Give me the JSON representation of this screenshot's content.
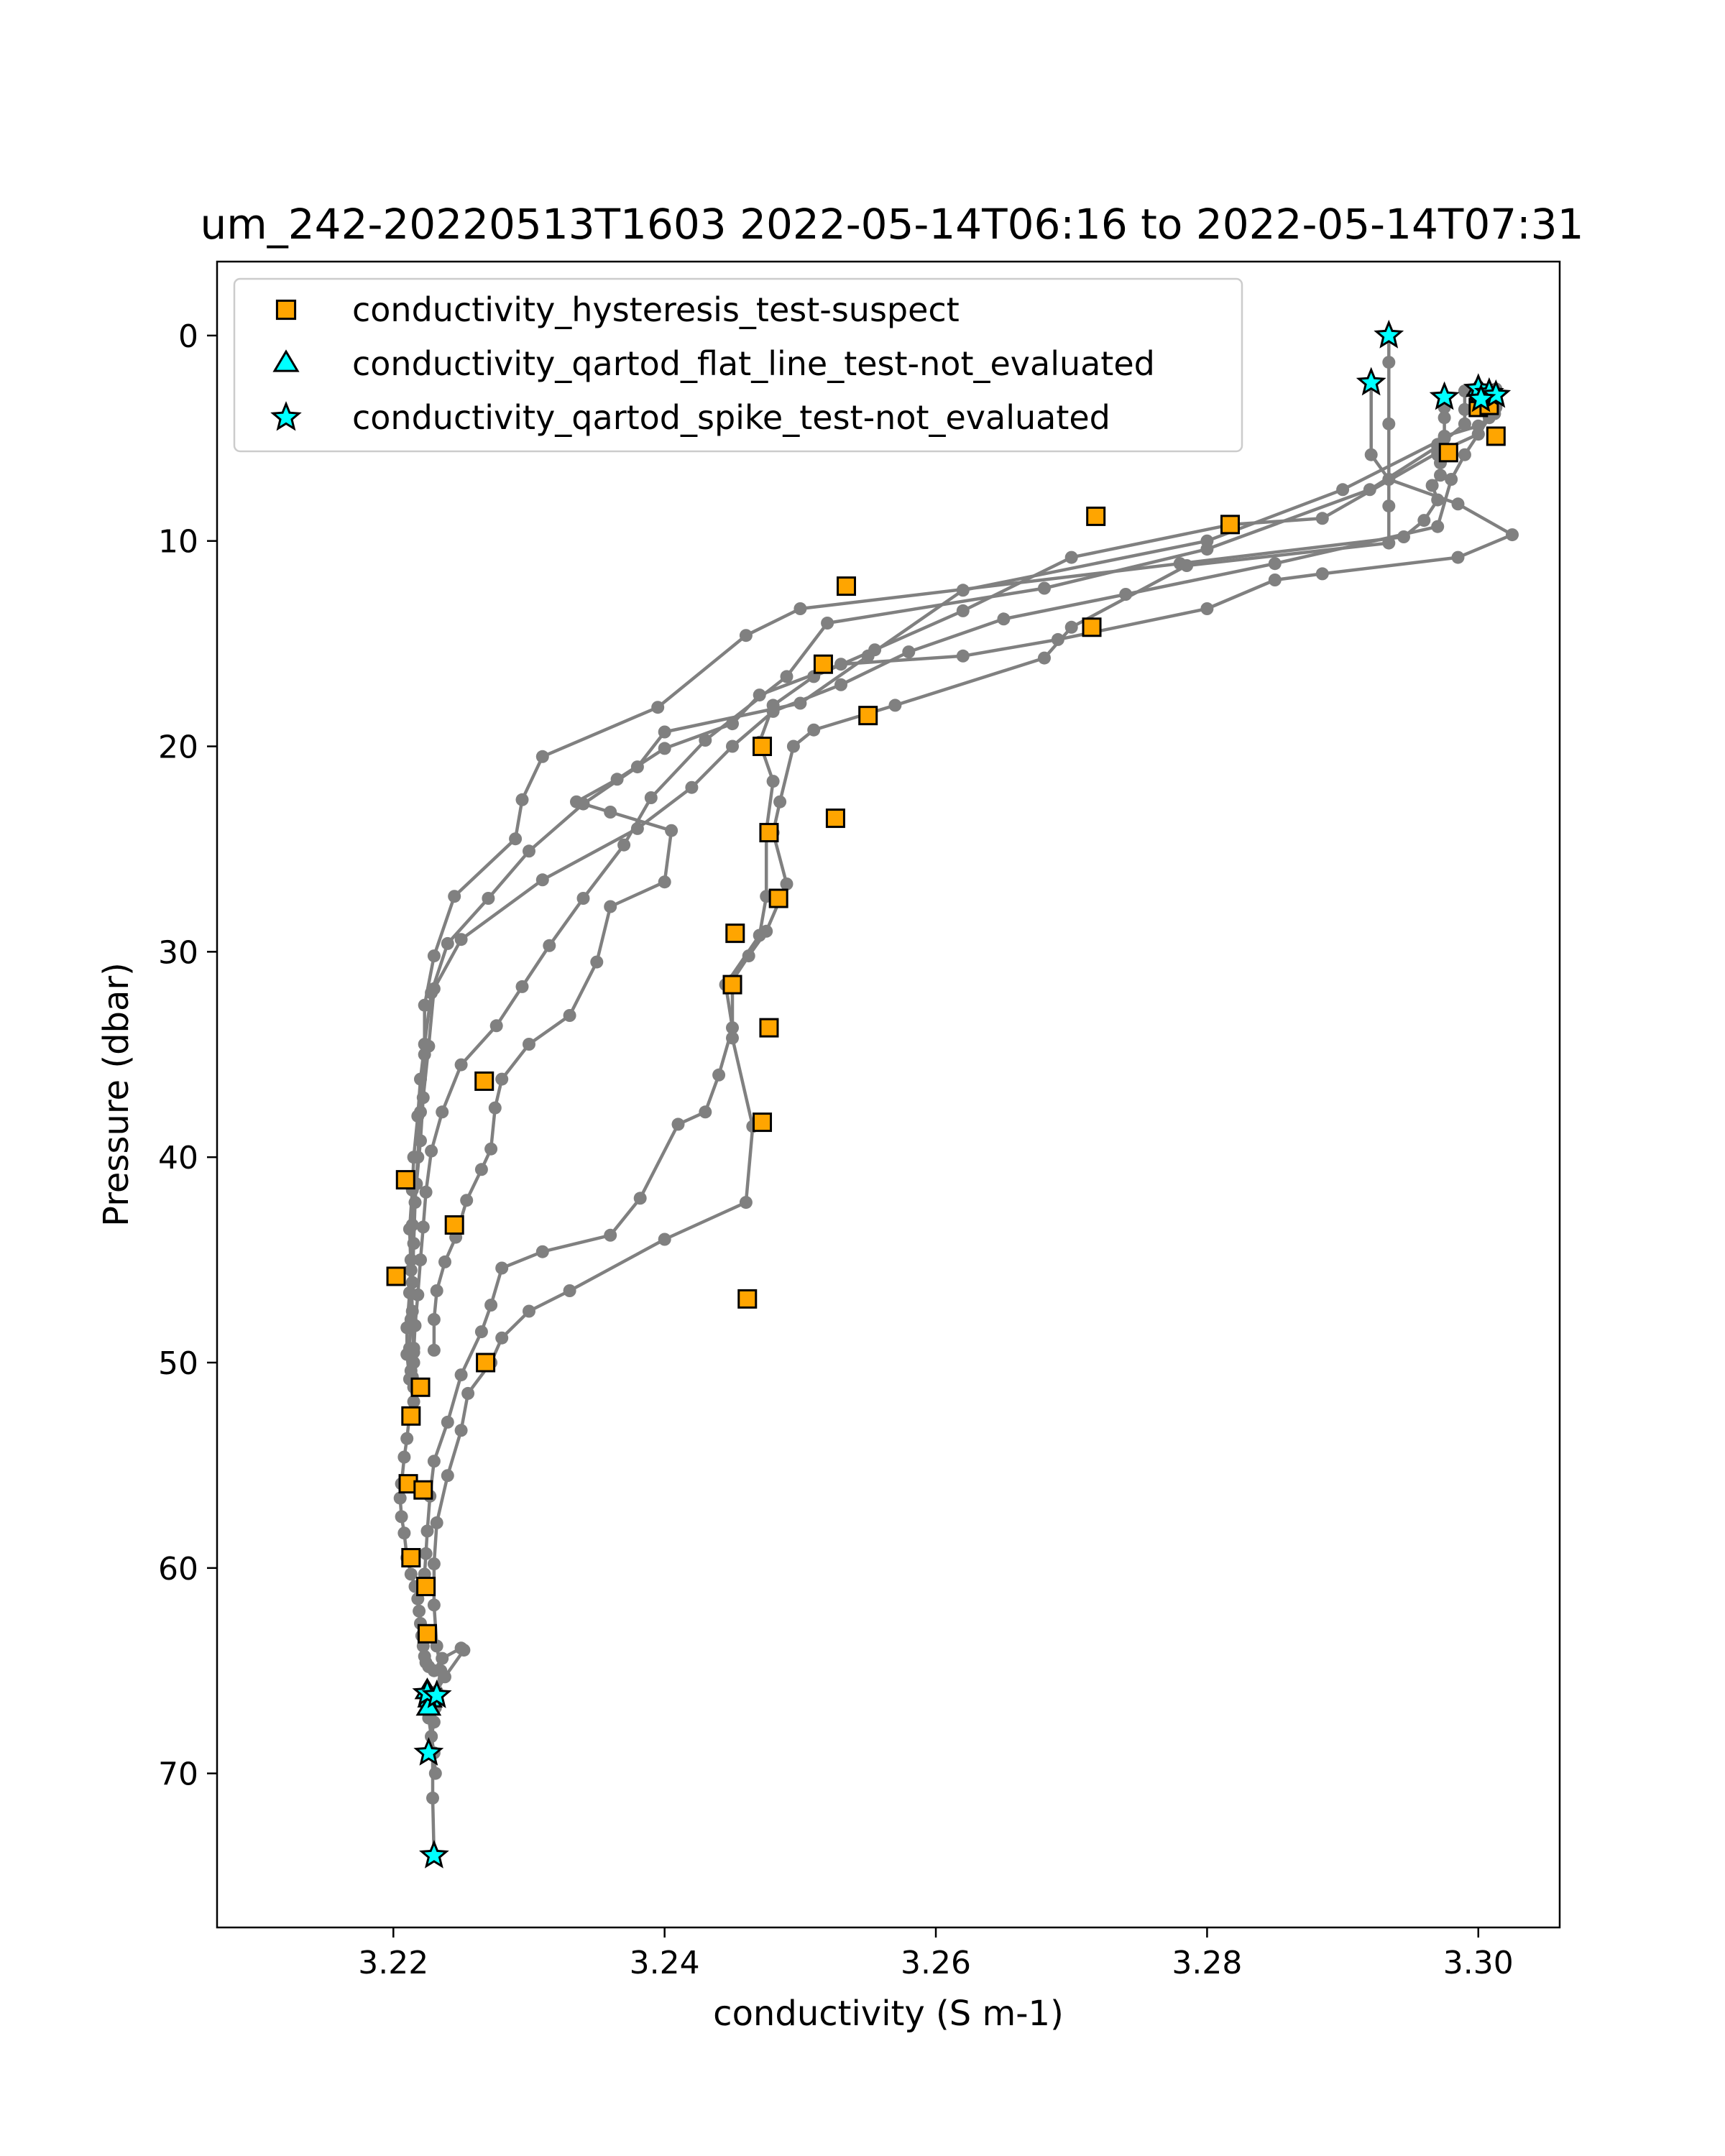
{
  "chart_data": {
    "type": "scatter",
    "title": "um_242-20220513T1603 2022-05-14T06:16 to 2022-05-14T07:31",
    "xlabel": "conductivity (S m-1)",
    "ylabel": "Pressure (dbar)",
    "xlim": [
      3.207,
      3.306
    ],
    "ylim": [
      77.5,
      -3.6
    ],
    "y_inverted": true,
    "grid": false,
    "legend_placement": "upper-left",
    "xticks": [
      3.22,
      3.24,
      3.26,
      3.28,
      3.3
    ],
    "xtick_labels": [
      "3.22",
      "3.24",
      "3.26",
      "3.28",
      "3.30"
    ],
    "yticks": [
      0,
      10,
      20,
      30,
      40,
      50,
      60,
      70
    ],
    "ytick_labels": [
      "0",
      "10",
      "20",
      "30",
      "40",
      "50",
      "60",
      "70"
    ],
    "profile_color": "#808080",
    "profiles": [
      {
        "x": [
          3.2934,
          3.2934,
          3.2934,
          3.2934,
          3.2934,
          3.2785,
          3.27,
          3.268,
          3.257,
          3.251,
          3.2495,
          3.2485,
          3.248,
          3.249,
          3.2475,
          3.2462,
          3.245,
          3.245,
          3.2465,
          3.246,
          3.24,
          3.233,
          3.23,
          3.228,
          3.2272,
          3.2255,
          3.225,
          3.224,
          3.2232,
          3.223,
          3.223,
          3.2232,
          3.2235,
          3.2232,
          3.2231,
          3.223,
          3.2228,
          3.2229,
          3.2229,
          3.223
        ],
        "y": [
          0.0,
          1.3,
          4.3,
          8.3,
          10.1,
          11.2,
          14.2,
          15.7,
          18.0,
          19.2,
          20.0,
          22.7,
          24.2,
          26.7,
          29.0,
          30.2,
          31.4,
          34.2,
          38.5,
          42.2,
          44.0,
          46.5,
          47.5,
          48.8,
          50.0,
          51.5,
          53.3,
          55.5,
          57.8,
          59.8,
          61.8,
          63.8,
          65.0,
          66.0,
          66.8,
          67.5,
          68.2,
          69.0,
          71.2,
          74.0
        ]
      },
      {
        "x": [
          3.3008,
          3.3008,
          3.3008,
          3.3,
          3.297,
          3.2885,
          3.2818,
          3.27,
          3.262,
          3.2555,
          3.251,
          3.248,
          3.247,
          3.248,
          3.2475,
          3.2475,
          3.247,
          3.2445,
          3.245,
          3.244,
          3.243,
          3.241,
          3.2382,
          3.236,
          3.231,
          3.228,
          3.2272,
          3.2265,
          3.225,
          3.224,
          3.223,
          3.2227,
          3.2225,
          3.2224,
          3.2223
        ],
        "y": [
          2.8,
          3.4,
          4.0,
          4.8,
          5.7,
          8.9,
          9.2,
          10.8,
          13.4,
          15.3,
          16.6,
          18.0,
          19.8,
          21.7,
          24.1,
          27.3,
          29.2,
          31.6,
          33.7,
          36.0,
          37.8,
          38.4,
          42.0,
          43.8,
          44.6,
          45.4,
          47.2,
          48.5,
          50.6,
          52.9,
          54.8,
          56.5,
          58.2,
          59.3,
          60.3
        ]
      },
      {
        "x": [
          3.2921,
          3.2921,
          3.2934,
          3.2985,
          3.3025,
          3.2985,
          3.2885,
          3.285,
          3.28,
          3.269,
          3.262,
          3.253,
          3.247,
          3.245,
          3.24,
          3.2365,
          3.2335,
          3.236,
          3.2405,
          3.24,
          3.236,
          3.235,
          3.233,
          3.23,
          3.228,
          3.2275,
          3.2272,
          3.2265,
          3.2254,
          3.2246,
          3.2238,
          3.2232,
          3.223,
          3.223
        ],
        "y": [
          2.3,
          5.8,
          7.0,
          8.2,
          9.7,
          10.8,
          11.6,
          11.9,
          13.3,
          14.8,
          15.6,
          16.0,
          17.5,
          18.9,
          20.1,
          21.6,
          22.7,
          23.2,
          24.1,
          26.6,
          27.8,
          30.5,
          33.1,
          34.5,
          36.2,
          37.6,
          39.6,
          40.6,
          42.1,
          43.9,
          45.1,
          46.5,
          47.9,
          49.4
        ]
      },
      {
        "x": [
          3.3012,
          3.3012,
          3.3,
          3.2975,
          3.297,
          3.297,
          3.2972,
          3.2972,
          3.2966,
          3.297,
          3.296,
          3.2945,
          3.278,
          3.25,
          3.246,
          3.2395,
          3.231,
          3.2295,
          3.229,
          3.2245,
          3.223,
          3.2223,
          3.2223,
          3.222,
          3.2218,
          3.2216,
          3.2215,
          3.2214,
          3.2213,
          3.2212,
          3.2213
        ],
        "y": [
          2.9,
          3.8,
          4.4,
          4.9,
          5.3,
          5.8,
          6.2,
          6.8,
          7.3,
          8.0,
          9.0,
          9.8,
          11.1,
          13.3,
          14.6,
          18.1,
          20.5,
          22.6,
          24.5,
          27.3,
          30.2,
          32.6,
          35.0,
          37.8,
          40.0,
          42.2,
          44.2,
          46.1,
          47.9,
          49.3,
          50.4
        ]
      },
      {
        "x": [
          3.2975,
          3.2975,
          3.2975,
          3.2975,
          3.29,
          3.28,
          3.262,
          3.255,
          3.25,
          3.24,
          3.238,
          3.234,
          3.23,
          3.227,
          3.224,
          3.2228,
          3.2223,
          3.222,
          3.2218,
          3.2215,
          3.2214,
          3.2212,
          3.2213,
          3.2214,
          3.2215
        ],
        "y": [
          3.0,
          3.5,
          4.0,
          5.0,
          7.5,
          10.0,
          12.4,
          15.6,
          17.9,
          19.3,
          21.0,
          22.8,
          25.1,
          27.4,
          29.6,
          32.0,
          34.5,
          36.2,
          38.0,
          40.0,
          41.6,
          43.5,
          45.5,
          47.5,
          49.3
        ]
      },
      {
        "x": [
          3.3013,
          3.3013,
          3.3,
          3.299,
          3.298,
          3.297,
          3.285,
          3.274,
          3.265,
          3.258,
          3.253,
          3.248,
          3.245,
          3.242,
          3.238,
          3.231,
          3.225,
          3.223,
          3.2226,
          3.2222,
          3.222,
          3.2217,
          3.2214,
          3.2213,
          3.2212,
          3.221,
          3.221,
          3.2212,
          3.2215
        ],
        "y": [
          2.6,
          3.5,
          4.8,
          5.8,
          7.0,
          9.3,
          11.1,
          12.6,
          13.8,
          15.4,
          17.0,
          18.3,
          20.0,
          22.0,
          24.0,
          26.5,
          29.4,
          31.8,
          34.6,
          37.1,
          39.2,
          41.3,
          43.3,
          45.0,
          46.6,
          48.3,
          49.6,
          50.8,
          51.9
        ]
      },
      {
        "x": [
          3.299,
          3.299,
          3.299,
          3.297,
          3.292,
          3.28,
          3.268,
          3.252,
          3.249,
          3.243,
          3.239,
          3.237,
          3.234,
          3.2315,
          3.2295,
          3.2276,
          3.225,
          3.2236,
          3.2228,
          3.2224,
          3.2222,
          3.222,
          3.2218,
          3.2216,
          3.2215,
          3.2214
        ],
        "y": [
          2.7,
          3.6,
          4.3,
          5.4,
          7.5,
          10.4,
          12.3,
          14.0,
          16.6,
          19.7,
          22.5,
          24.8,
          27.4,
          29.7,
          31.7,
          33.6,
          35.5,
          37.8,
          39.7,
          41.7,
          43.4,
          45.0,
          46.7,
          48.2,
          49.5,
          50.7
        ]
      },
      {
        "x": [
          3.2215,
          3.2215,
          3.2212,
          3.221,
          3.2208,
          3.2206,
          3.2205,
          3.2206,
          3.2208,
          3.221,
          3.2213,
          3.2216,
          3.2218,
          3.2219,
          3.222,
          3.2221,
          3.2222,
          3.2223,
          3.2224,
          3.2226,
          3.223,
          3.2236,
          3.225,
          3.2252,
          3.2238,
          3.223,
          3.2228,
          3.2226,
          3.2228,
          3.223,
          3.2231
        ],
        "y": [
          50.0,
          51.2,
          52.5,
          53.7,
          54.6,
          55.9,
          56.6,
          57.5,
          58.3,
          59.5,
          60.3,
          60.9,
          61.5,
          62.1,
          62.7,
          63.3,
          63.8,
          64.3,
          64.6,
          64.8,
          65.0,
          64.4,
          63.9,
          64.0,
          65.3,
          66.2,
          66.7,
          67.3,
          68.2,
          69.0,
          70.0
        ]
      }
    ],
    "series": [
      {
        "name": "conductivity_hysteresis_test-suspect",
        "marker": "square",
        "color": "#FFA500",
        "edgecolor": "#000000",
        "x": [
          3.2718,
          3.2817,
          3.2534,
          3.2715,
          3.2517,
          3.2472,
          3.255,
          3.2477,
          3.2526,
          3.2484,
          3.2452,
          3.245,
          3.2477,
          3.2472,
          3.2267,
          3.2209,
          3.2245,
          3.2202,
          3.2461,
          3.2268,
          3.222,
          3.2213,
          3.2211,
          3.2222,
          3.2213,
          3.2224,
          3.2225,
          3.3,
          3.3008,
          3.3013,
          3.2978
        ],
        "y": [
          8.8,
          9.2,
          12.2,
          14.2,
          16.0,
          20.0,
          18.5,
          24.2,
          23.5,
          27.4,
          29.1,
          31.6,
          33.7,
          38.3,
          36.3,
          41.1,
          43.3,
          45.8,
          46.9,
          50.0,
          51.2,
          52.6,
          55.9,
          56.2,
          59.5,
          60.9,
          63.2,
          3.5,
          3.4,
          4.9,
          5.7
        ]
      },
      {
        "name": "conductivity_qartod_flat_line_test-not_evaluated",
        "marker": "triangle",
        "color": "#00FFFF",
        "edgecolor": "#000000",
        "x": [
          3.3,
          3.3003,
          3.2225,
          3.2227,
          3.2226
        ],
        "y": [
          2.6,
          2.9,
          66.0,
          66.4,
          66.8
        ]
      },
      {
        "name": "conductivity_qartod_spike_test-not_evaluated",
        "marker": "star",
        "color": "#00FFFF",
        "edgecolor": "#000000",
        "x": [
          3.2934,
          3.2921,
          3.2975,
          3.3,
          3.3008,
          3.3013,
          3.3002,
          3.2225,
          3.2232,
          3.2226,
          3.223
        ],
        "y": [
          0.0,
          2.3,
          3.0,
          2.6,
          2.8,
          2.9,
          3.1,
          66.1,
          66.2,
          69.0,
          74.0
        ]
      }
    ]
  }
}
